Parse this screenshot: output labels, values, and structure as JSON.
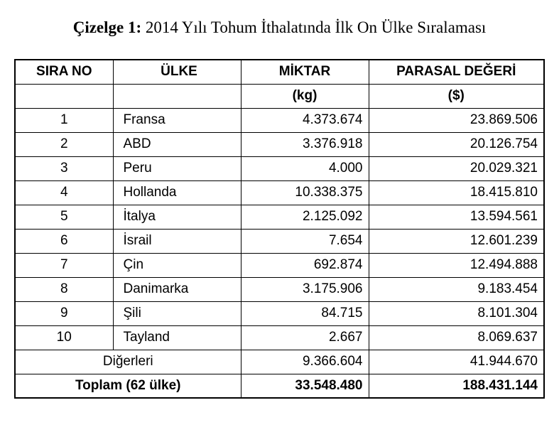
{
  "caption": {
    "label": "Çizelge 1:",
    "text": "2014 Yılı Tohum İthalatında İlk On Ülke Sıralaması"
  },
  "table": {
    "header": [
      "SIRA NO",
      "ÜLKE",
      "MİKTAR",
      "PARASAL DEĞERİ"
    ],
    "units": [
      "(kg)",
      "($)"
    ],
    "rows": [
      [
        1,
        "Fransa",
        "4.373.674",
        "23.869.506"
      ],
      [
        2,
        "ABD",
        "3.376.918",
        "20.126.754"
      ],
      [
        3,
        "Peru",
        "4.000",
        "20.029.321"
      ],
      [
        4,
        "Hollanda",
        "10.338.375",
        "18.415.810"
      ],
      [
        5,
        "İtalya",
        "2.125.092",
        "13.594.561"
      ],
      [
        6,
        "İsrail",
        "7.654",
        "12.601.239"
      ],
      [
        7,
        "Çin",
        "692.874",
        "12.494.888"
      ],
      [
        8,
        "Danimarka",
        "3.175.906",
        "9.183.454"
      ],
      [
        9,
        "Şili",
        "84.715",
        "8.101.304"
      ],
      [
        10,
        "Tayland",
        "2.667",
        "8.069.637"
      ]
    ],
    "others": [
      "Diğerleri",
      "9.366.604",
      "41.944.670"
    ],
    "total": [
      "Toplam (62 ülke)",
      "33.548.480",
      "188.431.144"
    ]
  }
}
